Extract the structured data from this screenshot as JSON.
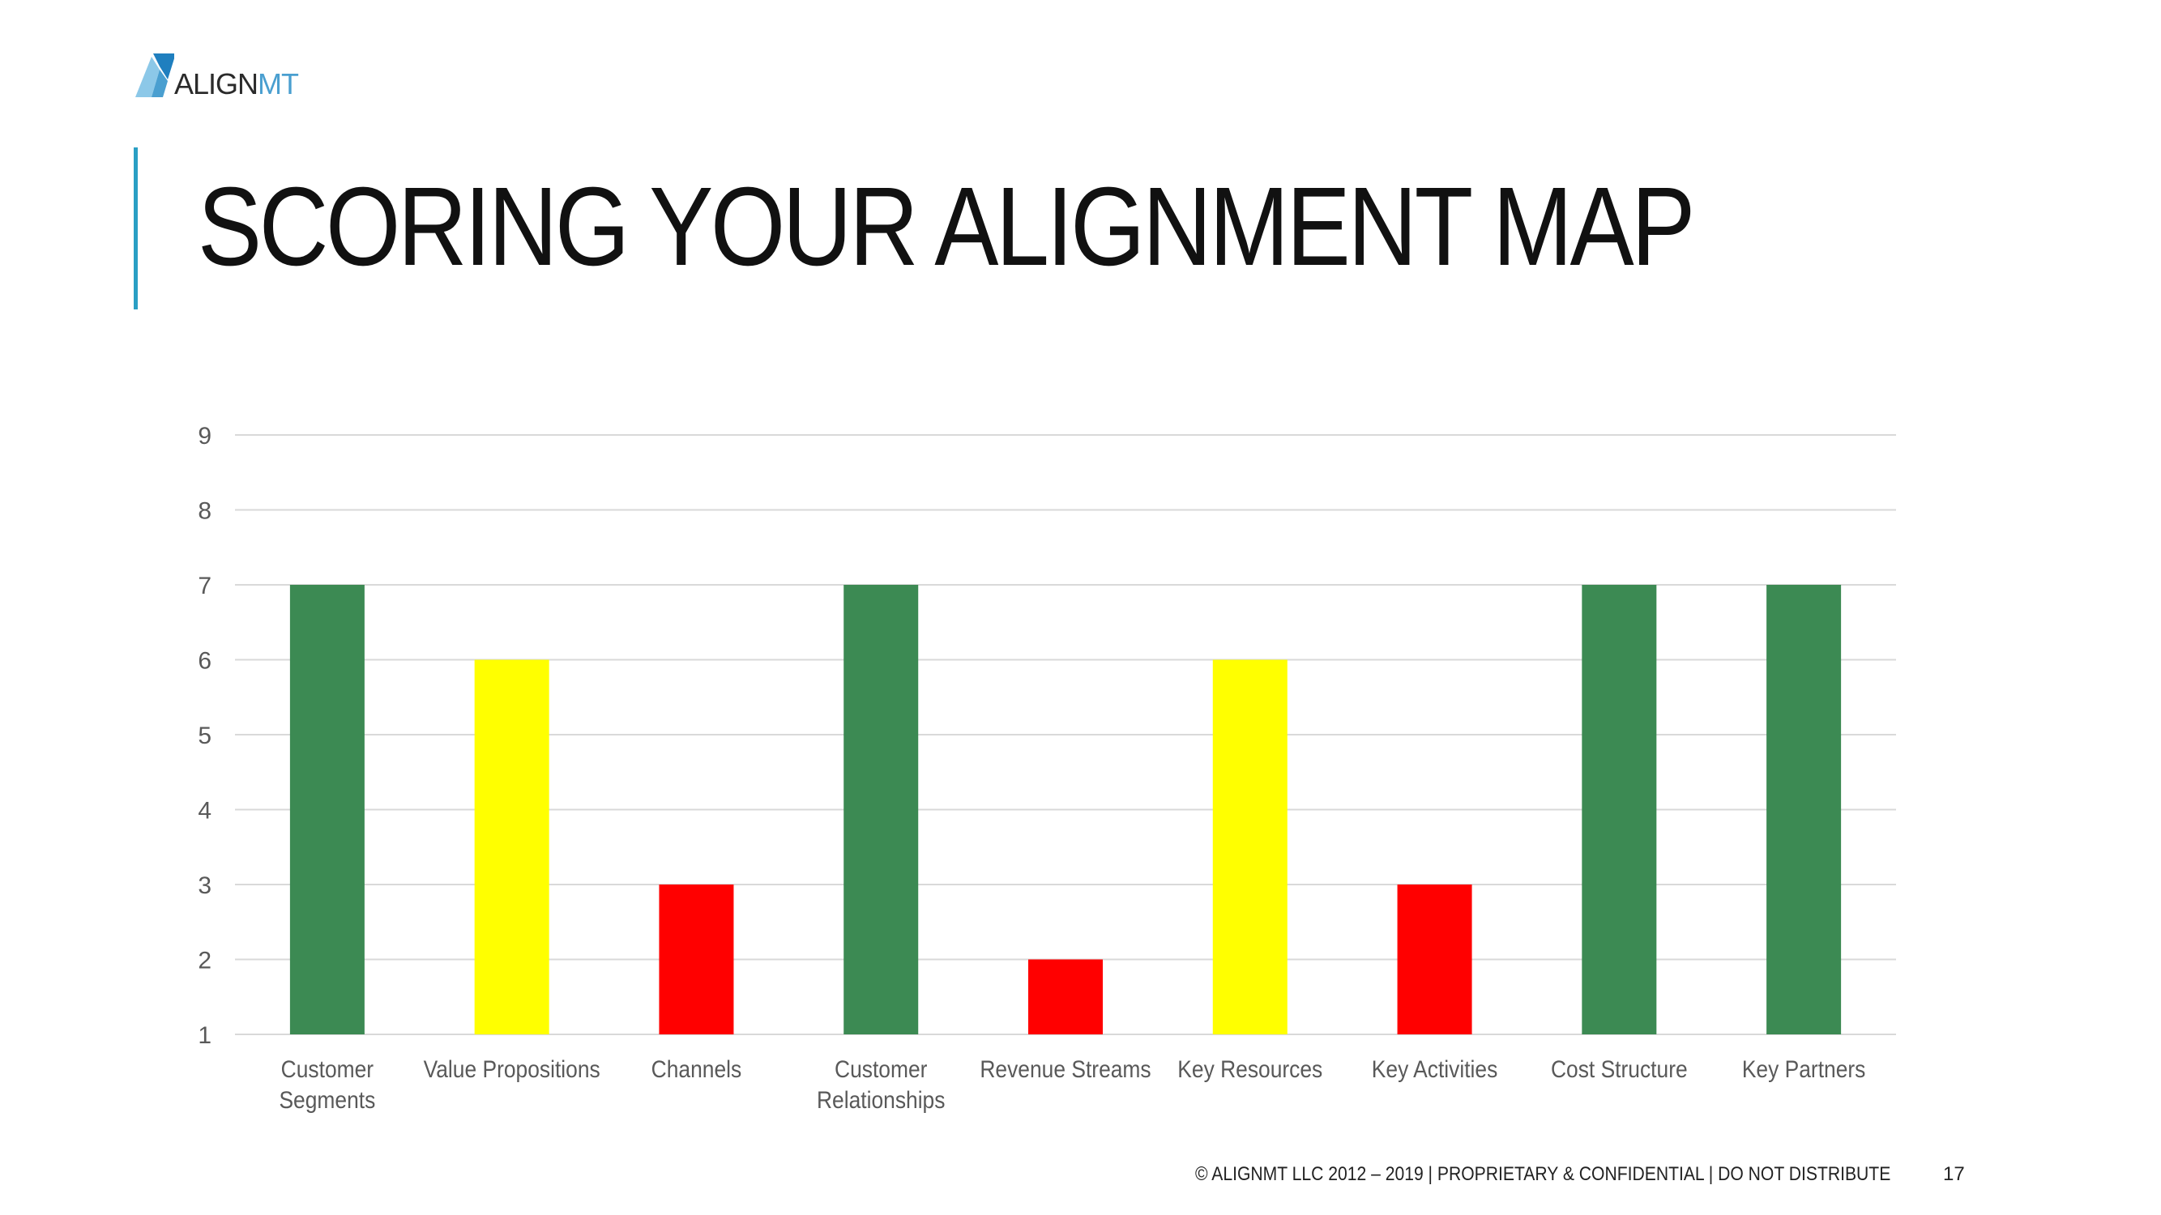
{
  "logo": {
    "text_dark": "ALIGN",
    "text_light": "MT",
    "colors": {
      "dark": "#2b2b2b",
      "light": "#4a9fd0",
      "mark_blue": "#1f7fbf",
      "mark_light": "#8cc8e8"
    }
  },
  "slide": {
    "title": "SCORING YOUR ALIGNMENT MAP",
    "accent_color": "#2a9fc4",
    "footer": "© ALIGNMT LLC 2012 – 2019 | PROPRIETARY & CONFIDENTIAL | DO NOT DISTRIBUTE",
    "page_number": "17"
  },
  "chart_data": {
    "type": "bar",
    "title": "",
    "xlabel": "",
    "ylabel": "",
    "ylim": [
      1,
      9
    ],
    "yticks": [
      1,
      2,
      3,
      4,
      5,
      6,
      7,
      8,
      9
    ],
    "grid": true,
    "legend": "none",
    "categories": [
      [
        "Customer",
        "Segments"
      ],
      [
        "Value Propositions"
      ],
      [
        "Channels"
      ],
      [
        "Customer",
        "Relationships"
      ],
      [
        "Revenue Streams"
      ],
      [
        "Key Resources"
      ],
      [
        "Key Activities"
      ],
      [
        "Cost Structure"
      ],
      [
        "Key Partners"
      ]
    ],
    "values": [
      7,
      6,
      3,
      7,
      2,
      6,
      3,
      7,
      7
    ],
    "bar_colors": [
      "#3c8a53",
      "#ffff00",
      "#ff0000",
      "#3c8a53",
      "#ff0000",
      "#ffff00",
      "#ff0000",
      "#3c8a53",
      "#3c8a53"
    ],
    "colors": {
      "grid": "#d9d9d9",
      "tick_text": "#595959"
    }
  }
}
